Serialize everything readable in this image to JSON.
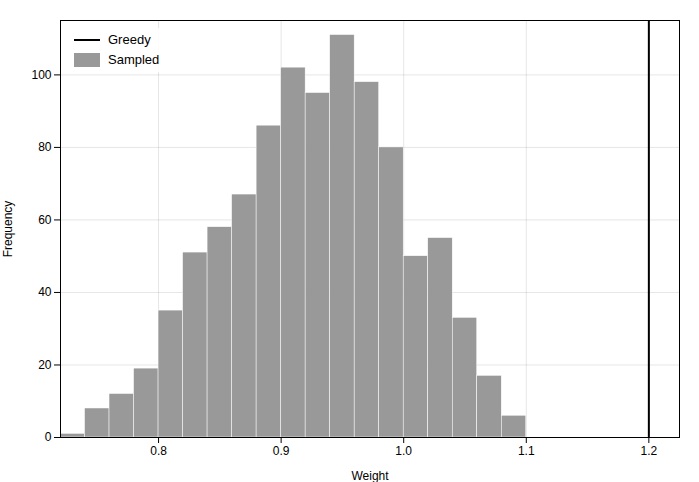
{
  "chart_data": {
    "type": "histogram",
    "xlabel": "Weight",
    "ylabel": "Frequency",
    "bins": [
      0.72,
      0.74,
      0.76,
      0.78,
      0.8,
      0.82,
      0.84,
      0.86,
      0.88,
      0.9,
      0.92,
      0.94,
      0.96,
      0.98,
      1.0,
      1.02,
      1.04,
      1.06,
      1.08,
      1.1
    ],
    "series": [
      {
        "name": "Greedy",
        "type": "rule",
        "color": "#000000",
        "x": 1.2
      },
      {
        "name": "Sampled",
        "type": "bar",
        "color": "#999999",
        "values": [
          1,
          8,
          12,
          19,
          35,
          51,
          58,
          67,
          86,
          102,
          95,
          111,
          98,
          80,
          50,
          55,
          33,
          17,
          6
        ]
      }
    ],
    "xlim": [
      0.72,
      1.225
    ],
    "ylim": [
      0,
      115
    ],
    "xticks": [
      0.8,
      0.9,
      {
        "value": 1.0,
        "label": "1.0"
      },
      1.1,
      1.2
    ],
    "yticks": [
      0,
      20,
      40,
      60,
      80,
      100
    ],
    "grid": true,
    "legend": "upper left"
  }
}
